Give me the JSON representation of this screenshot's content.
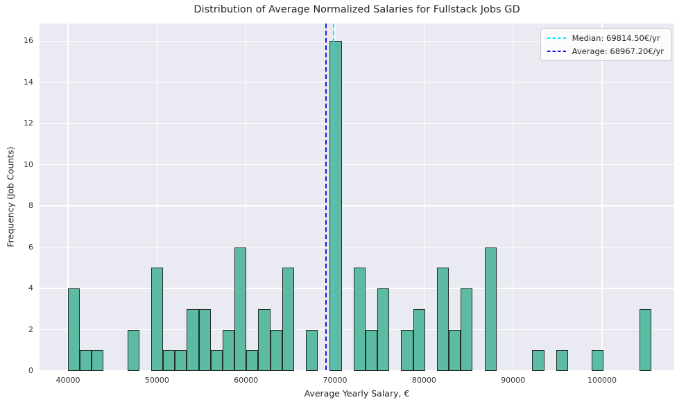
{
  "title": "Distribution of Average Normalized Salaries for Fullstack Jobs GD",
  "chart_data": {
    "type": "histogram",
    "title": "Distribution of Average Normalized Salaries for Fullstack Jobs GD",
    "xlabel": "Average Yearly Salary, €",
    "ylabel": "Frequency (Job Counts)",
    "bin_start": 39975,
    "bin_width": 1338,
    "counts": [
      4,
      1,
      1,
      0,
      0,
      2,
      0,
      5,
      1,
      1,
      3,
      3,
      1,
      2,
      6,
      1,
      3,
      2,
      5,
      0,
      2,
      0,
      16,
      0,
      5,
      2,
      4,
      0,
      2,
      3,
      0,
      5,
      2,
      4,
      0,
      6,
      0,
      0,
      0,
      1,
      0,
      1,
      0,
      0,
      1,
      0,
      0,
      0,
      3
    ],
    "xlim": [
      36805,
      108102
    ],
    "ylim": [
      0,
      16.85
    ],
    "xticks": [
      40000,
      50000,
      60000,
      70000,
      80000,
      90000,
      100000
    ],
    "yticks": [
      0,
      2,
      4,
      6,
      8,
      10,
      12,
      14,
      16
    ],
    "grid_on": true,
    "colors": {
      "bar_fill": "#5cbba2",
      "bar_edge": "#222c29",
      "plot_background": "#eaeaf2",
      "grid": "#ffffff",
      "median_line": "#00eeff",
      "average_line": "#1414e6"
    },
    "median": {
      "value": 69814.5,
      "label": "Median: 69814.50€/yr"
    },
    "average": {
      "value": 68967.2,
      "label": "Average: 68967.20€/yr"
    },
    "legend": {
      "position": "upper right",
      "entries": [
        {
          "label": "Median: 69814.50€/yr",
          "color": "#00eeff"
        },
        {
          "label": "Average: 68967.20€/yr",
          "color": "#1414e6"
        }
      ]
    }
  }
}
